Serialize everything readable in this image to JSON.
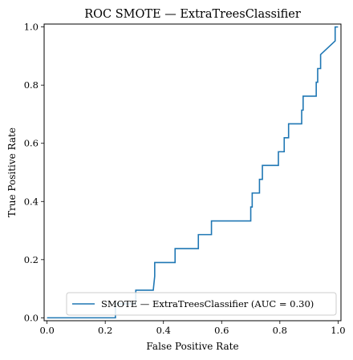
{
  "chart_data": {
    "type": "line",
    "title": "ROC SMOTE — ExtraTreesClassifier",
    "xlabel": "False Positive Rate",
    "ylabel": "True Positive Rate",
    "xlim": [
      -0.01,
      1.01
    ],
    "ylim": [
      -0.01,
      1.01
    ],
    "x_ticks": [
      0.0,
      0.2,
      0.4,
      0.6,
      0.8,
      1.0
    ],
    "x_tick_labels": [
      "0.0",
      "0.2",
      "0.4",
      "0.6",
      "0.8",
      "1.0"
    ],
    "y_ticks": [
      0.0,
      0.2,
      0.4,
      0.6,
      0.8,
      1.0
    ],
    "y_tick_labels": [
      "0.0",
      "0.2",
      "0.4",
      "0.6",
      "0.8",
      "1.0"
    ],
    "grid": false,
    "legend_position": "lower-right",
    "series": [
      {
        "name": "SMOTE — ExtraTreesClassifier (AUC = 0.30)",
        "color": "#1f77b4",
        "x": [
          0.0,
          0.0,
          0.235,
          0.235,
          0.305,
          0.305,
          0.365,
          0.37,
          0.37,
          0.44,
          0.44,
          0.52,
          0.52,
          0.565,
          0.565,
          0.7,
          0.7,
          0.705,
          0.705,
          0.73,
          0.73,
          0.74,
          0.74,
          0.795,
          0.795,
          0.815,
          0.815,
          0.83,
          0.83,
          0.84,
          0.84,
          0.875,
          0.875,
          0.88,
          0.88,
          0.885,
          0.885,
          0.925,
          0.925,
          0.93,
          0.93,
          0.94,
          0.94,
          0.99,
          0.99,
          1.0
        ],
        "y": [
          0.0,
          0.0,
          0.0,
          0.048,
          0.048,
          0.095,
          0.095,
          0.143,
          0.19,
          0.19,
          0.238,
          0.238,
          0.286,
          0.286,
          0.333,
          0.333,
          0.381,
          0.381,
          0.429,
          0.429,
          0.476,
          0.476,
          0.524,
          0.524,
          0.571,
          0.571,
          0.619,
          0.619,
          0.667,
          0.667,
          0.667,
          0.667,
          0.714,
          0.714,
          0.762,
          0.762,
          0.762,
          0.762,
          0.81,
          0.81,
          0.857,
          0.857,
          0.905,
          0.952,
          1.0,
          1.0
        ]
      }
    ]
  }
}
